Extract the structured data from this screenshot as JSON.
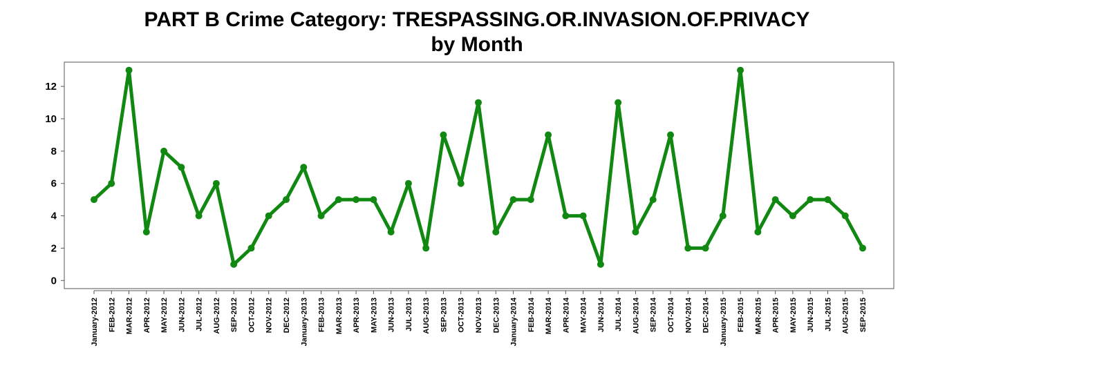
{
  "chart_data": {
    "type": "line",
    "title": "PART B Crime Category:  TRESPASSING.OR.INVASION.OF.PRIVACY",
    "subtitle": "by Month",
    "xlabel": "",
    "ylabel": "",
    "ylim": [
      -0.5,
      13.5
    ],
    "yticks": [
      0,
      2,
      4,
      6,
      8,
      10,
      12
    ],
    "grid": false,
    "color": "#118811",
    "categories": [
      "January-2012",
      "FEB-2012",
      "MAR-2012",
      "APR-2012",
      "MAY-2012",
      "JUN-2012",
      "JUL-2012",
      "AUG-2012",
      "SEP-2012",
      "OCT-2012",
      "NOV-2012",
      "DEC-2012",
      "January-2013",
      "FEB-2013",
      "MAR-2013",
      "APR-2013",
      "MAY-2013",
      "JUN-2013",
      "JUL-2013",
      "AUG-2013",
      "SEP-2013",
      "OCT-2013",
      "NOV-2013",
      "DEC-2013",
      "January-2014",
      "FEB-2014",
      "MAR-2014",
      "APR-2014",
      "MAY-2014",
      "JUN-2014",
      "JUL-2014",
      "AUG-2014",
      "SEP-2014",
      "OCT-2014",
      "NOV-2014",
      "DEC-2014",
      "January-2015",
      "FEB-2015",
      "MAR-2015",
      "APR-2015",
      "MAY-2015",
      "JUN-2015",
      "JUL-2015",
      "AUG-2015",
      "SEP-2015"
    ],
    "values": [
      5,
      6,
      13,
      3,
      8,
      7,
      4,
      6,
      1,
      2,
      4,
      5,
      7,
      4,
      5,
      5,
      5,
      3,
      6,
      2,
      9,
      6,
      11,
      3,
      5,
      5,
      9,
      4,
      4,
      1,
      11,
      3,
      5,
      9,
      2,
      2,
      4,
      13,
      3,
      5,
      4,
      5,
      5,
      4,
      2
    ]
  }
}
